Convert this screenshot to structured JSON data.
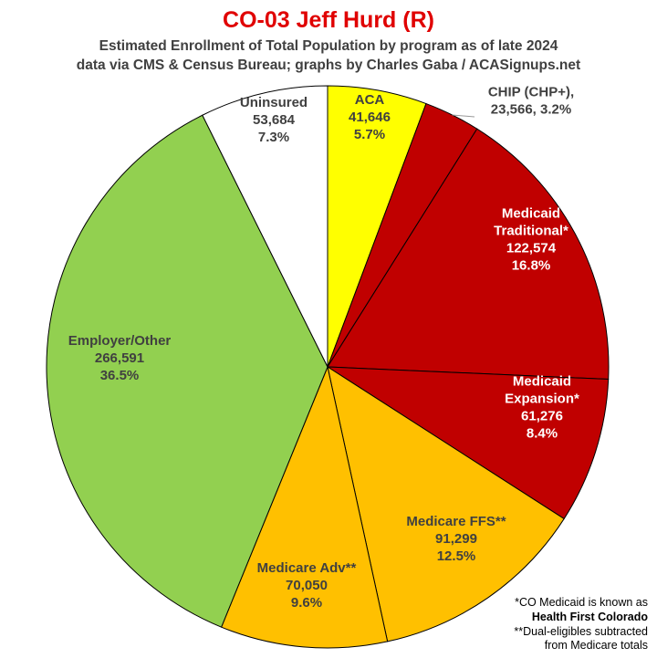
{
  "header": {
    "title": "CO-03 Jeff Hurd (R)",
    "subtitle_line1": "Estimated Enrollment of Total Population by program as of late 2024",
    "subtitle_line2": "data via CMS & Census Bureau; graphs by Charles Gaba / ACASignups.net"
  },
  "footnotes": {
    "line1": "*CO Medicaid is known as",
    "line2": "Health First Colorado",
    "line3": "**Dual-eligibles subtracted",
    "line4": "from Medicare totals"
  },
  "chart_data": {
    "type": "pie",
    "title": "CO-03 Jeff Hurd (R)",
    "slices": [
      {
        "label": "ACA",
        "value": 41646,
        "percent": "5.7%",
        "value_text": "41,646",
        "color": "#ffff00",
        "text_color": "#404040"
      },
      {
        "label": "CHIP (CHP+),",
        "value": 23566,
        "percent": "3.2%",
        "value_text": "23,566, 3.2%",
        "color": "#c00000",
        "text_color": "#404040"
      },
      {
        "label": "Medicaid Traditional*",
        "value": 122574,
        "percent": "16.8%",
        "value_text": "122,574",
        "color": "#c00000",
        "text_color": "#ffffff"
      },
      {
        "label": "Medicaid Expansion*",
        "value": 61276,
        "percent": "8.4%",
        "value_text": "61,276",
        "color": "#c00000",
        "text_color": "#ffffff"
      },
      {
        "label": "Medicare FFS**",
        "value": 91299,
        "percent": "12.5%",
        "value_text": "91,299",
        "color": "#ffc000",
        "text_color": "#404040"
      },
      {
        "label": "Medicare Adv**",
        "value": 70050,
        "percent": "9.6%",
        "value_text": "70,050",
        "color": "#ffc000",
        "text_color": "#404040"
      },
      {
        "label": "Employer/Other",
        "value": 266591,
        "percent": "36.5%",
        "value_text": "266,591",
        "color": "#92d050",
        "text_color": "#404040"
      },
      {
        "label": "Uninsured",
        "value": 53684,
        "percent": "7.3%",
        "value_text": "53,684",
        "color": "#ffffff",
        "text_color": "#404040"
      }
    ]
  }
}
